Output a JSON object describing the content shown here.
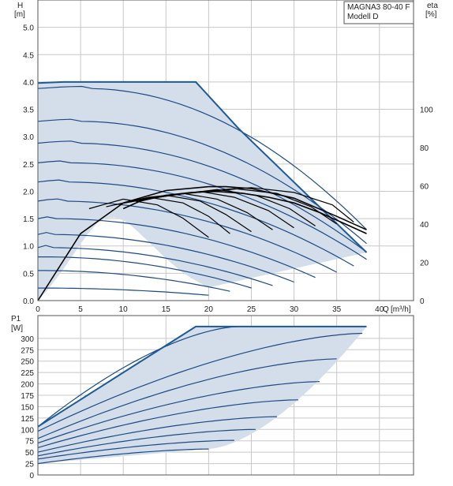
{
  "chart_data": [
    {
      "type": "line",
      "title": "MAGNA3 80-40 F",
      "subtitle": "Modell D",
      "x_axis": {
        "label": "Q",
        "unit": "[m³/h]",
        "lim": [
          0,
          44
        ],
        "ticks": [
          0,
          5,
          10,
          15,
          20,
          25,
          30,
          35,
          40
        ]
      },
      "y_axis": {
        "label": "H",
        "unit": "[m]",
        "lim": [
          0,
          5.5
        ],
        "ticks": [
          0.0,
          0.5,
          1.0,
          1.5,
          2.0,
          2.5,
          3.0,
          3.5,
          4.0,
          4.5,
          5.0
        ]
      },
      "y2_axis": {
        "label": "eta",
        "unit": "[%]",
        "lim": [
          0,
          157
        ],
        "ticks": [
          0,
          20,
          40,
          60,
          80,
          100
        ]
      },
      "grid": true,
      "colors": {
        "envelope": "#1d5a96",
        "curves": "#1d4a85",
        "fill": "#d3deea",
        "eta": "#000000",
        "grid": "#c8c8c8"
      },
      "envelope": {
        "x": [
          0,
          3,
          18.5,
          23.5,
          38.5,
          20
        ],
        "y": [
          3.98,
          4.0,
          4.0,
          3.15,
          0.88,
          0.24
        ]
      },
      "lower_boundary": {
        "x": [
          0,
          1,
          2,
          3,
          4,
          5,
          6,
          7,
          8,
          9,
          10,
          11,
          12,
          13,
          14,
          15,
          16,
          17,
          18,
          19,
          20
        ],
        "y": [
          0.0,
          0.17,
          0.37,
          0.58,
          0.81,
          1.04,
          1.25,
          1.42,
          1.51,
          1.52,
          1.47,
          1.36,
          1.22,
          1.07,
          0.92,
          0.77,
          0.64,
          0.51,
          0.41,
          0.32,
          0.24
        ]
      },
      "series": [
        {
          "H0": 3.88,
          "Qend": 38.5
        },
        {
          "H0": 3.28,
          "Qend": 38.5
        },
        {
          "H0": 2.88,
          "Qend": 38.5
        },
        {
          "H0": 2.52,
          "Qend": 38.5
        },
        {
          "H0": 2.17,
          "Qend": 37
        },
        {
          "H0": 1.82,
          "Qend": 35
        },
        {
          "H0": 1.5,
          "Qend": 32.5
        },
        {
          "H0": 1.21,
          "Qend": 30
        },
        {
          "H0": 0.97,
          "Qend": 27.5
        },
        {
          "H0": 0.8,
          "Qend": 25
        },
        {
          "H0": 0.55,
          "Qend": 22.5
        },
        {
          "H0": 0.23,
          "Qend": 20
        }
      ],
      "eta_series": [
        {
          "x": [
            0,
            5,
            10,
            15,
            20,
            22,
            25,
            30,
            35,
            38.5
          ],
          "y": [
            0,
            35,
            51,
            57.5,
            59.5,
            59.5,
            58.5,
            53.5,
            44,
            37
          ]
        },
        {
          "x": [
            10,
            12,
            15,
            18,
            21,
            24,
            27,
            30,
            33,
            36,
            38.5
          ],
          "y": [
            48,
            52,
            55,
            56.5,
            57,
            56,
            54,
            51,
            46,
            40,
            35
          ]
        }
      ],
      "eta_arcs": [
        {
          "x": [
            6,
            10,
            14,
            17,
            20
          ],
          "y": [
            48,
            53,
            50,
            43,
            33
          ]
        },
        {
          "x": [
            8,
            13,
            17,
            20,
            22.5
          ],
          "y": [
            49,
            54,
            51,
            44,
            35
          ]
        },
        {
          "x": [
            9,
            15,
            19,
            22,
            25
          ],
          "y": [
            50,
            55,
            52,
            45,
            36
          ]
        },
        {
          "x": [
            10,
            17,
            21,
            24.5,
            27.5
          ],
          "y": [
            51,
            56,
            53,
            46,
            37
          ]
        },
        {
          "x": [
            11,
            19,
            23,
            27,
            30
          ],
          "y": [
            52,
            57,
            54,
            47,
            38
          ]
        },
        {
          "x": [
            12,
            21,
            25.5,
            29.5,
            32.5
          ],
          "y": [
            53,
            58,
            55,
            48,
            39
          ]
        },
        {
          "x": [
            13,
            23,
            28,
            32,
            35
          ],
          "y": [
            54,
            58.5,
            56,
            49,
            40
          ]
        },
        {
          "x": [
            15,
            25,
            30,
            34.5,
            37
          ],
          "y": [
            55,
            59,
            56.5,
            50,
            41
          ]
        }
      ]
    },
    {
      "type": "line",
      "x_axis": {
        "lim": [
          0,
          44
        ],
        "ticks": [
          0,
          5,
          10,
          15,
          20,
          25,
          30,
          35,
          40
        ]
      },
      "y_axis": {
        "label": "P1",
        "unit": "[W]",
        "lim": [
          0,
          350
        ],
        "ticks": [
          0,
          25,
          50,
          75,
          100,
          125,
          150,
          175,
          200,
          225,
          250,
          275,
          300
        ]
      },
      "grid": true,
      "envelope": {
        "x": [
          0,
          0,
          18.5,
          38.5,
          20
        ],
        "y": [
          25,
          106,
          326,
          326,
          57
        ]
      },
      "series": [
        {
          "P0": 106,
          "P_end": 326,
          "Qend": 23.5
        },
        {
          "P0": 96,
          "P_end": 311,
          "Qend": 38
        },
        {
          "P0": 80,
          "P_end": 255,
          "Qend": 35
        },
        {
          "P0": 70,
          "P_end": 205,
          "Qend": 33
        },
        {
          "P0": 60,
          "P_end": 165,
          "Qend": 30.5
        },
        {
          "P0": 50,
          "P_end": 128,
          "Qend": 28
        },
        {
          "P0": 42,
          "P_end": 100,
          "Qend": 25.5
        },
        {
          "P0": 35,
          "P_end": 76,
          "Qend": 23
        },
        {
          "P0": 25,
          "P_end": 57,
          "Qend": 20
        }
      ]
    }
  ]
}
